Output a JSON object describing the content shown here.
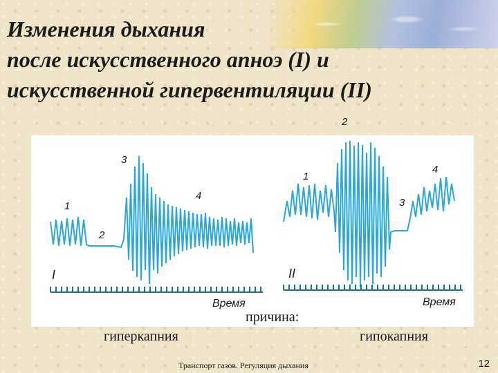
{
  "slide": {
    "title_lines": [
      "Изменения дыхания",
      "после искусственного апноэ (I) и",
      "искусственной гипервентиляции (II)"
    ],
    "footer": "Транспорт газов. Регуляция дыхания",
    "page_number": "12"
  },
  "diagram": {
    "colors": {
      "trace": "#2aa7d4",
      "axis": "#1a6f9a",
      "text": "#1a1a1a"
    },
    "panel_I": {
      "roman_label": "I",
      "axis_label": "Время",
      "markers": [
        "1",
        "2",
        "3",
        "4"
      ]
    },
    "panel_II": {
      "roman_label": "II",
      "axis_label": "Время",
      "markers": [
        "1",
        "2",
        "3",
        "4"
      ]
    }
  },
  "captions": {
    "cause": "причина:",
    "left": "гиперкапния",
    "right": "гипокапния"
  }
}
